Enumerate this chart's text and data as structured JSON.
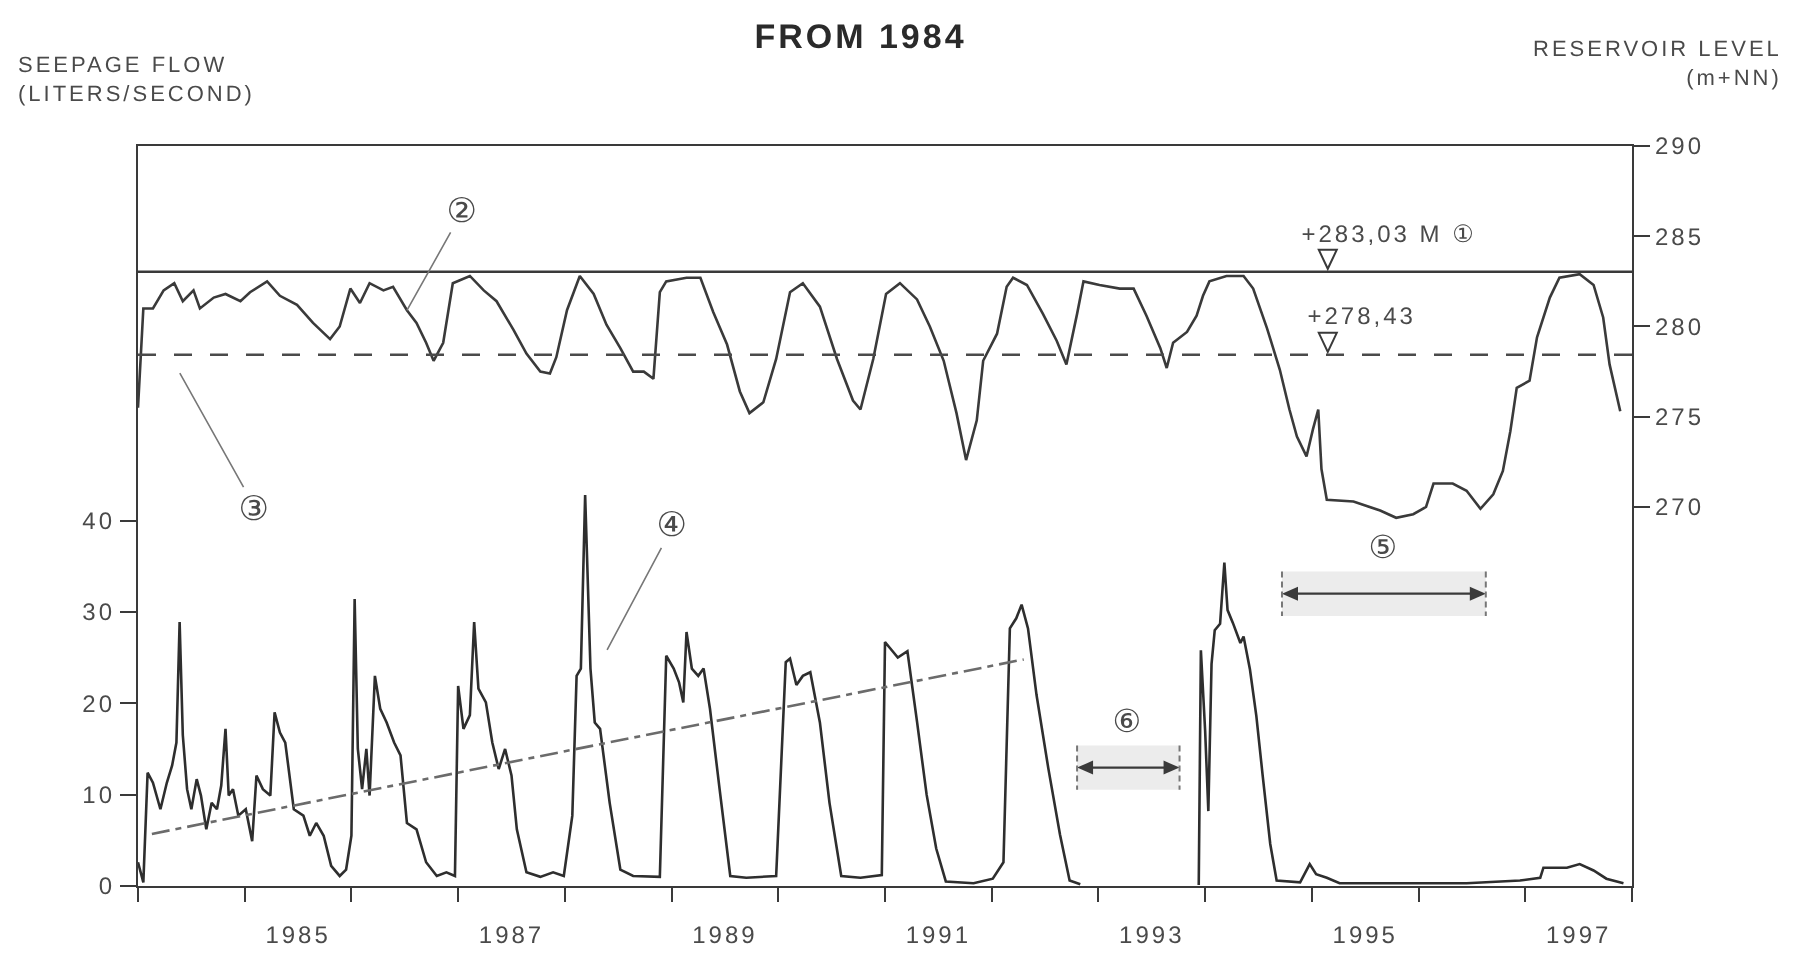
{
  "chart_data": {
    "type": "line",
    "title": "FROM 1984",
    "ylabel": "SEEPAGE FLOW\n(LITERS/SECOND)",
    "y2label": "RESERVOIR LEVEL\n(m+NN)",
    "xlim": [
      1984,
      1998
    ],
    "xticks": [
      {
        "value": 1984,
        "label": null
      },
      {
        "value": 1985,
        "label": null
      },
      {
        "value": 1985.5,
        "label": "1985"
      },
      {
        "value": 1986,
        "label": null
      },
      {
        "value": 1987,
        "label": null
      },
      {
        "value": 1987.5,
        "label": "1987"
      },
      {
        "value": 1988,
        "label": null
      },
      {
        "value": 1989,
        "label": null
      },
      {
        "value": 1989.5,
        "label": "1989"
      },
      {
        "value": 1990,
        "label": null
      },
      {
        "value": 1991,
        "label": null
      },
      {
        "value": 1991.5,
        "label": "1991"
      },
      {
        "value": 1992,
        "label": null
      },
      {
        "value": 1993,
        "label": null
      },
      {
        "value": 1993.5,
        "label": "1993"
      },
      {
        "value": 1994,
        "label": null
      },
      {
        "value": 1995,
        "label": null
      },
      {
        "value": 1995.5,
        "label": "1995"
      },
      {
        "value": 1996,
        "label": null
      },
      {
        "value": 1997,
        "label": null
      },
      {
        "value": 1997.5,
        "label": "1997"
      },
      {
        "value": 1998,
        "label": null
      }
    ],
    "ylim": [
      0,
      81
    ],
    "yticks": [
      0,
      10,
      20,
      30,
      40
    ],
    "y2lim": [
      249,
      290
    ],
    "y2ticks": [
      270,
      275,
      280,
      285,
      290
    ],
    "ref_lines": [
      {
        "axis": "y2",
        "value": 283.03,
        "label": "+283,03 M ①",
        "line_style": "solid",
        "color": "#3a3a3a"
      },
      {
        "axis": "y2",
        "value": 278.43,
        "label": "+278,43",
        "line_style": "dashed",
        "color": "#4a4a4a"
      }
    ],
    "bands": [
      {
        "axis": "x",
        "from": 1992.8,
        "to": 1993.76,
        "label": "⑥",
        "color": "#ececec"
      },
      {
        "axis": "x",
        "from": 1994.72,
        "to": 1996.63,
        "label": "⑤",
        "color": "#ececec"
      }
    ],
    "annotations": [
      {
        "text": "②",
        "x": 1986.52,
        "y": 63.0
      },
      "③",
      "④"
    ],
    "series": [
      {
        "axis": "y2",
        "color": "#3a3a3a",
        "x": [
          1984.0,
          1984.05,
          1984.14,
          1984.24,
          1984.34,
          1984.42,
          1984.52,
          1984.58,
          1984.71,
          1984.82,
          1984.96,
          1985.05,
          1985.21,
          1985.33,
          1985.49,
          1985.64,
          1985.8,
          1985.89,
          1985.99,
          1986.08,
          1986.17,
          1986.3,
          1986.39,
          1986.52,
          1986.61,
          1986.7,
          1986.77,
          1986.86,
          1986.95,
          1987.11,
          1987.24,
          1987.36,
          1987.52,
          1987.64,
          1987.77,
          1987.86,
          1987.92,
          1988.02,
          1988.14,
          1988.27,
          1988.39,
          1988.52,
          1988.64,
          1988.74,
          1988.83,
          1988.89,
          1988.95,
          1989.14,
          1989.27,
          1989.39,
          1989.52,
          1989.64,
          1989.73,
          1989.86,
          1989.98,
          1990.11,
          1990.23,
          1990.39,
          1990.55,
          1990.7,
          1990.77,
          1990.89,
          1991.01,
          1991.14,
          1991.3,
          1991.42,
          1991.55,
          1991.67,
          1991.76,
          1991.86,
          1991.92,
          1992.05,
          1992.14,
          1992.2,
          1992.33,
          1992.48,
          1992.61,
          1992.7,
          1992.8,
          1992.86,
          1993.01,
          1993.2,
          1993.33,
          1993.45,
          1993.58,
          1993.64,
          1993.7,
          1993.83,
          1993.92,
          1993.98,
          1994.04,
          1994.2,
          1994.36,
          1994.45,
          1994.58,
          1994.7,
          1994.79,
          1994.86,
          1994.95,
          1995.01,
          1995.06,
          1995.09,
          1995.14,
          1995.39,
          1995.64,
          1995.79,
          1995.95,
          1996.07,
          1996.14,
          1996.32,
          1996.45,
          1996.58,
          1996.7,
          1996.79,
          1996.86,
          1996.92,
          1997.04,
          1997.11,
          1997.23,
          1997.32,
          1997.51,
          1997.64,
          1997.73,
          1997.79,
          1997.89
        ],
        "values": [
          275.5,
          281.0,
          281.0,
          282.0,
          282.4,
          281.4,
          282.0,
          281.0,
          281.6,
          281.8,
          281.4,
          281.9,
          282.5,
          281.7,
          281.2,
          280.2,
          279.3,
          280.0,
          282.1,
          281.3,
          282.4,
          282.0,
          282.2,
          280.9,
          280.2,
          279.1,
          278.1,
          279.1,
          282.4,
          282.8,
          282.0,
          281.4,
          279.8,
          278.5,
          277.5,
          277.4,
          278.3,
          280.9,
          282.8,
          281.8,
          280.1,
          278.8,
          277.5,
          277.5,
          277.1,
          281.9,
          282.5,
          282.7,
          282.7,
          280.8,
          279.0,
          276.4,
          275.2,
          275.8,
          278.2,
          281.9,
          282.4,
          281.1,
          278.2,
          275.9,
          275.4,
          278.2,
          281.8,
          282.4,
          281.5,
          280.0,
          278.1,
          275.2,
          272.6,
          274.8,
          278.1,
          279.6,
          282.2,
          282.7,
          282.3,
          280.7,
          279.2,
          277.9,
          280.7,
          282.5,
          282.3,
          282.1,
          282.1,
          280.6,
          278.8,
          277.7,
          279.1,
          279.7,
          280.6,
          281.7,
          282.5,
          282.8,
          282.8,
          282.1,
          279.9,
          277.6,
          275.4,
          273.9,
          272.8,
          274.3,
          275.4,
          272.1,
          270.4,
          270.3,
          269.8,
          269.4,
          269.6,
          270.0,
          271.3,
          271.3,
          270.9,
          269.9,
          270.7,
          272.0,
          274.2,
          276.6,
          277.0,
          279.4,
          281.6,
          282.7,
          282.9,
          282.3,
          280.5,
          277.9,
          275.3
        ]
      },
      {
        "color": "#2e2e2e",
        "x": [
          1984.0,
          1984.05,
          1984.09,
          1984.14,
          1984.21,
          1984.27,
          1984.32,
          1984.36,
          1984.39,
          1984.42,
          1984.46,
          1984.5,
          1984.55,
          1984.59,
          1984.64,
          1984.69,
          1984.74,
          1984.78,
          1984.82,
          1984.85,
          1984.89,
          1984.94,
          1985.01,
          1985.07,
          1985.11,
          1985.17,
          1985.24,
          1985.28,
          1985.33,
          1985.38,
          1985.46,
          1985.55,
          1985.61,
          1985.67,
          1985.74,
          1985.81,
          1985.89,
          1985.95,
          1986.0,
          1986.03,
          1986.06,
          1986.1,
          1986.14,
          1986.17,
          1986.22,
          1986.27,
          1986.33,
          1986.4,
          1986.46,
          1986.52,
          1986.61,
          1986.7,
          1986.8,
          1986.89,
          1986.97,
          1987.0,
          1987.05,
          1987.11,
          1987.15,
          1987.19,
          1987.26,
          1987.32,
          1987.38,
          1987.44,
          1987.5,
          1987.55,
          1987.64,
          1987.77,
          1987.89,
          1987.99,
          1988.07,
          1988.11,
          1988.15,
          1988.19,
          1988.24,
          1988.28,
          1988.33,
          1988.42,
          1988.52,
          1988.64,
          1988.89,
          1988.95,
          1989.02,
          1989.07,
          1989.11,
          1989.14,
          1989.19,
          1989.25,
          1989.3,
          1989.36,
          1989.45,
          1989.55,
          1989.7,
          1989.98,
          1990.07,
          1990.11,
          1990.17,
          1990.23,
          1990.3,
          1990.39,
          1990.48,
          1990.59,
          1990.77,
          1990.97,
          1991.0,
          1991.05,
          1991.12,
          1991.21,
          1991.3,
          1991.39,
          1991.48,
          1991.57,
          1991.83,
          1992.01,
          1992.11,
          1992.17,
          1992.23,
          1992.28,
          1992.34,
          1992.42,
          1992.53,
          1992.64,
          1992.73,
          1992.83,
          1993.4,
          1993.94,
          1993.96,
          1994.0,
          1994.03,
          1994.06,
          1994.09,
          1994.14,
          1994.18,
          1994.21,
          1994.26,
          1994.33,
          1994.36,
          1994.42,
          1994.48,
          1994.54,
          1994.61,
          1994.67,
          1994.89,
          1994.98,
          1995.04,
          1995.14,
          1995.26,
          1996.14,
          1996.45,
          1996.95,
          1997.14,
          1997.17,
          1997.39,
          1997.51,
          1997.64,
          1997.76,
          1997.92
        ],
        "values": [
          2.6,
          0.4,
          12.4,
          11.3,
          8.4,
          11.3,
          13.2,
          15.7,
          28.9,
          16.5,
          10.6,
          8.4,
          11.7,
          9.9,
          6.2,
          9.1,
          8.4,
          11.0,
          17.2,
          9.9,
          10.6,
          7.7,
          8.4,
          4.9,
          12.1,
          10.6,
          9.9,
          19.0,
          16.8,
          15.7,
          8.4,
          7.7,
          5.5,
          6.9,
          5.5,
          2.2,
          1.1,
          1.8,
          5.5,
          31.4,
          15.0,
          10.6,
          15.0,
          9.9,
          23.0,
          19.4,
          17.9,
          15.7,
          14.3,
          6.9,
          6.2,
          2.6,
          1.1,
          1.5,
          1.1,
          21.9,
          17.2,
          18.7,
          28.9,
          21.6,
          20.1,
          15.7,
          12.8,
          15.0,
          12.1,
          6.2,
          1.5,
          1.0,
          1.5,
          1.1,
          7.7,
          23.0,
          23.8,
          42.8,
          23.8,
          17.9,
          17.2,
          9.1,
          1.8,
          1.1,
          1.0,
          25.2,
          23.8,
          22.3,
          20.1,
          27.8,
          23.8,
          23.0,
          23.8,
          19.4,
          10.6,
          1.1,
          0.9,
          1.1,
          24.5,
          24.9,
          22.0,
          23.0,
          23.4,
          17.9,
          9.1,
          1.1,
          0.9,
          1.2,
          26.7,
          26.0,
          25.0,
          25.7,
          18.0,
          10.0,
          4.1,
          0.5,
          0.3,
          0.8,
          2.6,
          28.2,
          29.3,
          30.8,
          28.2,
          20.9,
          12.9,
          5.6,
          0.6,
          0.2,
          null,
          0.1,
          25.8,
          17.0,
          8.2,
          24.3,
          28.0,
          28.7,
          35.4,
          30.2,
          28.8,
          26.6,
          27.3,
          23.7,
          18.6,
          12.0,
          4.6,
          0.6,
          0.4,
          2.4,
          1.3,
          0.9,
          0.3,
          0.3,
          0.3,
          0.6,
          0.9,
          2.0,
          2.0,
          2.4,
          1.7,
          0.8,
          0.3
        ]
      },
      {
        "type": "line",
        "color": "#6b6b6b",
        "line_style": "dashdot",
        "x": [
          1984.13,
          1992.3
        ],
        "values": [
          5.7,
          24.8
        ]
      }
    ]
  }
}
